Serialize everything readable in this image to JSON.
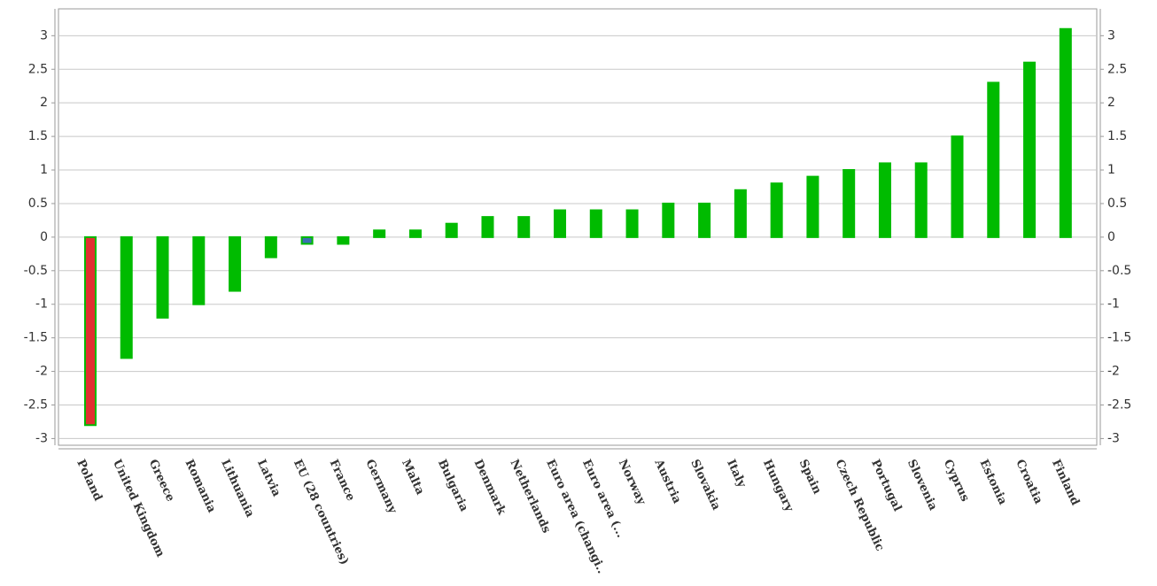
{
  "chart_data": {
    "type": "bar",
    "categories": [
      "Poland",
      "United Kingdom",
      "Greece",
      "Romania",
      "Lithuania",
      "Latvia",
      "EU (28 countries)",
      "France",
      "Germany",
      "Malta",
      "Bulgaria",
      "Denmark",
      "Netherlands",
      "Euro area (changi..",
      "Euro area (...",
      "Norway",
      "Austria",
      "Slovakia",
      "Italy",
      "Hungary",
      "Spain",
      "Czech Republic",
      "Portugal",
      "Slovenia",
      "Cyprus",
      "Estonia",
      "Croatia",
      "Finland"
    ],
    "values": [
      -2.8,
      -1.8,
      -1.2,
      -1.0,
      -0.8,
      -0.3,
      -0.1,
      -0.1,
      0.1,
      0.1,
      0.2,
      0.3,
      0.3,
      0.4,
      0.4,
      0.4,
      0.5,
      0.5,
      0.7,
      0.8,
      0.9,
      1.0,
      1.1,
      1.1,
      1.5,
      2.3,
      2.6,
      3.1
    ],
    "color": "#00bb00",
    "colors": [
      "#e03030",
      "#00bb00",
      "#00bb00",
      "#00bb00",
      "#00bb00",
      "#00bb00",
      "#3a6fb0",
      "#00bb00",
      "#00bb00",
      "#00bb00",
      "#00bb00",
      "#00bb00",
      "#00bb00",
      "#00bb00",
      "#00bb00",
      "#00bb00",
      "#00bb00",
      "#00bb00",
      "#00bb00",
      "#00bb00",
      "#00bb00",
      "#00bb00",
      "#00bb00",
      "#00bb00",
      "#00bb00",
      "#00bb00",
      "#00bb00",
      "#00bb00"
    ],
    "ylim": [
      -3.1,
      3.4
    ],
    "yticks": [
      -3,
      -2.5,
      -2,
      -1.5,
      -1,
      -0.5,
      0,
      0.5,
      1,
      1.5,
      2,
      2.5,
      3
    ],
    "grid": true
  }
}
